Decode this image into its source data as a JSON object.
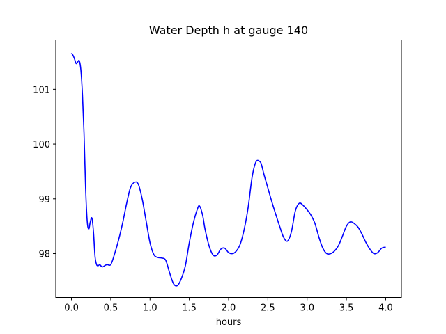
{
  "chart_data": {
    "type": "line",
    "title": "Water Depth h at gauge 140",
    "xlabel": "hours",
    "ylabel": "",
    "xlim": [
      -0.2,
      4.2
    ],
    "ylim": [
      97.2,
      101.9
    ],
    "xticks": [
      0.0,
      0.5,
      1.0,
      1.5,
      2.0,
      2.5,
      3.0,
      3.5,
      4.0
    ],
    "xtick_labels": [
      "0.0",
      "0.5",
      "1.0",
      "1.5",
      "2.0",
      "2.5",
      "3.0",
      "3.5",
      "4.0"
    ],
    "yticks": [
      98,
      99,
      100,
      101
    ],
    "ytick_labels": [
      "98",
      "99",
      "100",
      "101"
    ],
    "grid": false,
    "series": [
      {
        "color": "#0000ff",
        "x": [
          0.0,
          0.02,
          0.04,
          0.06,
          0.08,
          0.1,
          0.12,
          0.14,
          0.16,
          0.18,
          0.2,
          0.22,
          0.24,
          0.26,
          0.28,
          0.3,
          0.32,
          0.34,
          0.36,
          0.38,
          0.4,
          0.45,
          0.5,
          0.55,
          0.6,
          0.65,
          0.7,
          0.75,
          0.8,
          0.85,
          0.9,
          0.95,
          1.0,
          1.05,
          1.1,
          1.15,
          1.2,
          1.25,
          1.3,
          1.35,
          1.4,
          1.45,
          1.5,
          1.55,
          1.6,
          1.63,
          1.67,
          1.7,
          1.75,
          1.8,
          1.85,
          1.9,
          1.95,
          2.0,
          2.05,
          2.1,
          2.15,
          2.2,
          2.25,
          2.3,
          2.35,
          2.4,
          2.42,
          2.45,
          2.5,
          2.55,
          2.6,
          2.65,
          2.7,
          2.75,
          2.8,
          2.85,
          2.9,
          2.95,
          3.0,
          3.05,
          3.1,
          3.15,
          3.2,
          3.25,
          3.3,
          3.35,
          3.4,
          3.45,
          3.5,
          3.55,
          3.6,
          3.65,
          3.7,
          3.75,
          3.8,
          3.85,
          3.9,
          3.95,
          4.0
        ],
        "y": [
          101.66,
          101.62,
          101.55,
          101.47,
          101.5,
          101.52,
          101.35,
          100.9,
          100.2,
          99.2,
          98.6,
          98.45,
          98.58,
          98.65,
          98.4,
          97.95,
          97.8,
          97.78,
          97.8,
          97.77,
          97.76,
          97.8,
          97.8,
          98.0,
          98.25,
          98.55,
          98.9,
          99.2,
          99.3,
          99.27,
          99.0,
          98.6,
          98.2,
          97.98,
          97.93,
          97.92,
          97.88,
          97.65,
          97.45,
          97.42,
          97.55,
          97.78,
          98.2,
          98.55,
          98.8,
          98.87,
          98.7,
          98.45,
          98.15,
          97.98,
          97.97,
          98.08,
          98.1,
          98.02,
          98.0,
          98.05,
          98.18,
          98.45,
          98.85,
          99.4,
          99.68,
          99.68,
          99.62,
          99.45,
          99.2,
          98.95,
          98.72,
          98.5,
          98.3,
          98.23,
          98.4,
          98.78,
          98.92,
          98.88,
          98.8,
          98.7,
          98.55,
          98.3,
          98.1,
          98.0,
          98.0,
          98.05,
          98.15,
          98.32,
          98.5,
          98.58,
          98.55,
          98.48,
          98.35,
          98.2,
          98.08,
          98.0,
          98.02,
          98.1,
          98.12
        ]
      }
    ]
  }
}
